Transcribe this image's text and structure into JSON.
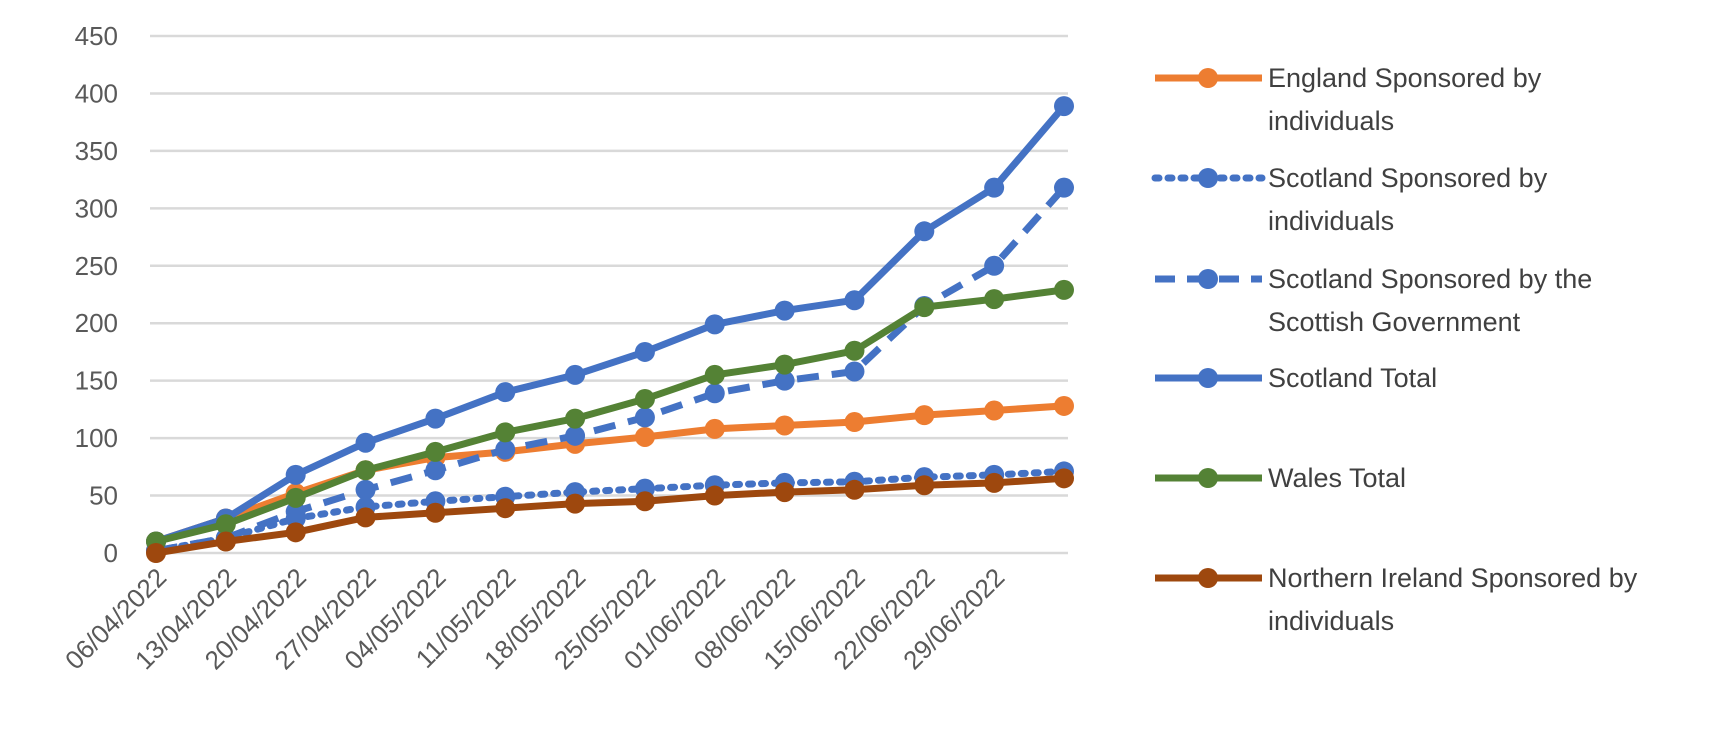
{
  "chart_data": {
    "type": "line",
    "title": "",
    "xlabel": "",
    "ylabel": "",
    "ylim": [
      0,
      450
    ],
    "y_ticks": [
      0,
      50,
      100,
      150,
      200,
      250,
      300,
      350,
      400,
      450
    ],
    "grid": true,
    "legend_position": "right",
    "categories": [
      "06/04/2022",
      "13/04/2022",
      "20/04/2022",
      "27/04/2022",
      "04/05/2022",
      "11/05/2022",
      "18/05/2022",
      "25/05/2022",
      "01/06/2022",
      "08/06/2022",
      "15/06/2022",
      "22/06/2022",
      "29/06/2022",
      "06/07/2022"
    ],
    "x_tick_labels": [
      "06/04/2022",
      "13/04/2022",
      "20/04/2022",
      "27/04/2022",
      "04/05/2022",
      "11/05/2022",
      "18/05/2022",
      "25/05/2022",
      "01/06/2022",
      "08/06/2022",
      "15/06/2022",
      "22/06/2022",
      "29/06/2022",
      ""
    ],
    "series": [
      {
        "name": "England Sponsored by individuals",
        "legend_lines": [
          "England Sponsored by",
          "individuals"
        ],
        "color": "#ed7d31",
        "style": "solid",
        "values": [
          10,
          30,
          52,
          72,
          83,
          88,
          95,
          101,
          108,
          111,
          114,
          120,
          124,
          128
        ]
      },
      {
        "name": "Scotland Sponsored by individuals",
        "legend_lines": [
          "Scotland Sponsored by",
          "individuals"
        ],
        "color": "#4472c4",
        "style": "dotted",
        "values": [
          2,
          13,
          30,
          40,
          45,
          49,
          53,
          56,
          59,
          61,
          62,
          66,
          68,
          71
        ]
      },
      {
        "name": "Scotland Sponsored by the Scottish Government",
        "legend_lines": [
          "Scotland Sponsored by the",
          "Scottish Government"
        ],
        "color": "#4472c4",
        "style": "dashed",
        "values": [
          2,
          13,
          36,
          55,
          72,
          90,
          102,
          118,
          139,
          150,
          158,
          215,
          250,
          318
        ]
      },
      {
        "name": "Scotland Total",
        "legend_lines": [
          "Scotland Total"
        ],
        "color": "#4472c4",
        "style": "solid",
        "values": [
          10,
          30,
          68,
          96,
          117,
          140,
          155,
          175,
          199,
          211,
          220,
          280,
          318,
          389
        ]
      },
      {
        "name": "Wales Total",
        "legend_lines": [
          "Wales Total"
        ],
        "color": "#548235",
        "style": "solid",
        "values": [
          10,
          25,
          48,
          72,
          88,
          105,
          117,
          134,
          155,
          164,
          176,
          214,
          221,
          229
        ]
      },
      {
        "name": "Northern Ireland Sponsored by individuals",
        "legend_lines": [
          "Northern Ireland Sponsored by",
          "individuals"
        ],
        "color": "#9e480e",
        "style": "solid",
        "values": [
          0,
          10,
          18,
          31,
          35,
          39,
          43,
          45,
          50,
          53,
          55,
          59,
          61,
          65
        ]
      }
    ]
  }
}
